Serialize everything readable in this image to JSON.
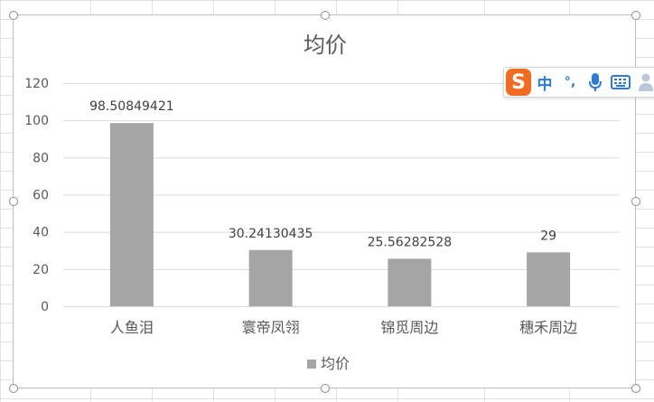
{
  "chart_data": {
    "type": "bar",
    "title": "均价",
    "categories": [
      "人鱼泪",
      "寰帝凤翎",
      "锦觅周边",
      "穗禾周边"
    ],
    "series": [
      {
        "name": "均价",
        "values": [
          98.50849421,
          30.24130435,
          25.56282528,
          29
        ],
        "value_labels": [
          "98.50849421",
          "30.24130435",
          "25.56282528",
          "29"
        ],
        "color": "#a5a5a5"
      }
    ],
    "xlabel": "",
    "ylabel": "",
    "ylim": [
      0,
      120
    ],
    "yticks": [
      0,
      20,
      40,
      60,
      80,
      100,
      120
    ],
    "grid": true,
    "legend": "bottom"
  },
  "ime_toolbar": {
    "logo": "S",
    "mode": "中",
    "punct": "°,",
    "icons": [
      "microphone-icon",
      "keyboard-icon",
      "user-icon"
    ],
    "accent": "#2b7bd8",
    "logo_color": "#f26b21"
  },
  "colors": {
    "gridline": "#d9d9d9",
    "bar": "#a5a5a5",
    "text": "#595959",
    "title": "#595959"
  }
}
